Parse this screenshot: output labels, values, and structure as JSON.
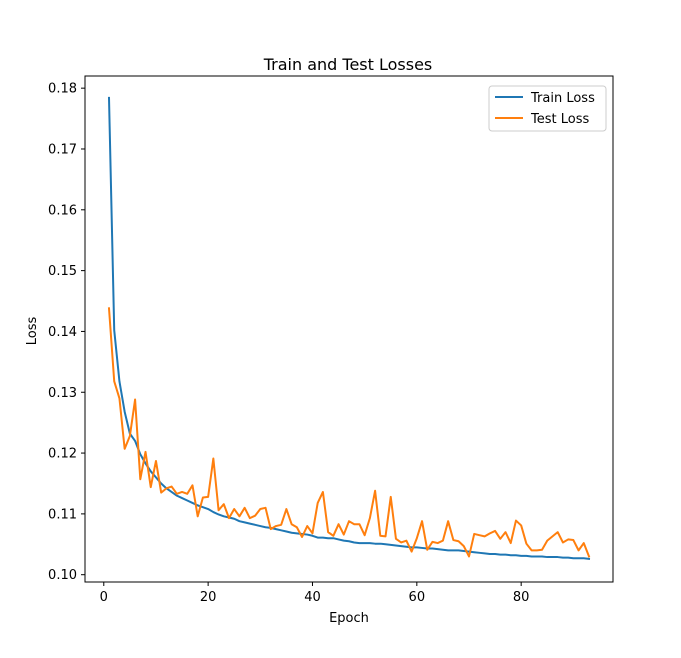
{
  "chart_data": {
    "type": "line",
    "title": "Train and Test Losses",
    "xlabel": "Epoch",
    "ylabel": "Loss",
    "xlim": [
      -3.6,
      97.6
    ],
    "ylim": [
      0.0988,
      0.182
    ],
    "xticks": [
      0,
      20,
      40,
      60,
      80
    ],
    "yticks": [
      0.1,
      0.11,
      0.12,
      0.13,
      0.14,
      0.15,
      0.16,
      0.17,
      0.18
    ],
    "ytick_labels": [
      "0.10",
      "0.11",
      "0.12",
      "0.13",
      "0.14",
      "0.15",
      "0.16",
      "0.17",
      "0.18"
    ],
    "grid": false,
    "legend_position": "upper right",
    "series": [
      {
        "name": "Train Loss",
        "color": "#1f77b4",
        "x": [
          1,
          2,
          3,
          4,
          5,
          6,
          7,
          8,
          9,
          10,
          11,
          12,
          13,
          14,
          15,
          16,
          17,
          18,
          19,
          20,
          21,
          22,
          23,
          24,
          25,
          26,
          27,
          28,
          29,
          30,
          31,
          32,
          33,
          34,
          35,
          36,
          37,
          38,
          39,
          40,
          41,
          42,
          43,
          44,
          45,
          46,
          47,
          48,
          49,
          50,
          51,
          52,
          53,
          54,
          55,
          56,
          57,
          58,
          59,
          60,
          61,
          62,
          63,
          64,
          65,
          66,
          67,
          68,
          69,
          70,
          71,
          72,
          73,
          74,
          75,
          76,
          77,
          78,
          79,
          80,
          81,
          82,
          83,
          84,
          85,
          86,
          87,
          88,
          89,
          90,
          91,
          92,
          93
        ],
        "values": [
          0.1784,
          0.1402,
          0.1318,
          0.1268,
          0.1232,
          0.122,
          0.1198,
          0.1183,
          0.117,
          0.116,
          0.115,
          0.1142,
          0.1136,
          0.113,
          0.1126,
          0.1122,
          0.1118,
          0.1114,
          0.1111,
          0.1108,
          0.1103,
          0.1099,
          0.1096,
          0.1094,
          0.1092,
          0.1088,
          0.1086,
          0.1084,
          0.1082,
          0.108,
          0.1078,
          0.1077,
          0.1075,
          0.1073,
          0.1071,
          0.1069,
          0.1068,
          0.1067,
          0.1066,
          0.1064,
          0.1061,
          0.1061,
          0.106,
          0.106,
          0.1058,
          0.1056,
          0.1055,
          0.1053,
          0.1052,
          0.1052,
          0.1052,
          0.1051,
          0.1051,
          0.105,
          0.1049,
          0.1048,
          0.1047,
          0.1046,
          0.1045,
          0.1045,
          0.1044,
          0.1043,
          0.1043,
          0.1042,
          0.1041,
          0.104,
          0.104,
          0.104,
          0.1039,
          0.1038,
          0.1037,
          0.1036,
          0.1035,
          0.1034,
          0.1034,
          0.1033,
          0.1033,
          0.1032,
          0.1032,
          0.1031,
          0.1031,
          0.103,
          0.103,
          0.103,
          0.1029,
          0.1029,
          0.1029,
          0.1028,
          0.1028,
          0.1027,
          0.1027,
          0.1027,
          0.1026
        ]
      },
      {
        "name": "Test Loss",
        "color": "#ff7f0e",
        "x": [
          1,
          2,
          3,
          4,
          5,
          6,
          7,
          8,
          9,
          10,
          11,
          12,
          13,
          14,
          15,
          16,
          17,
          18,
          19,
          20,
          21,
          22,
          23,
          24,
          25,
          26,
          27,
          28,
          29,
          30,
          31,
          32,
          33,
          34,
          35,
          36,
          37,
          38,
          39,
          40,
          41,
          42,
          43,
          44,
          45,
          46,
          47,
          48,
          49,
          50,
          51,
          52,
          53,
          54,
          55,
          56,
          57,
          58,
          59,
          60,
          61,
          62,
          63,
          64,
          65,
          66,
          67,
          68,
          69,
          70,
          71,
          72,
          73,
          74,
          75,
          76,
          77,
          78,
          79,
          80,
          81,
          82,
          83,
          84,
          85,
          86,
          87,
          88,
          89,
          90,
          91,
          92,
          93
        ],
        "values": [
          0.1438,
          0.1318,
          0.129,
          0.1207,
          0.1228,
          0.1288,
          0.1157,
          0.1202,
          0.1144,
          0.1187,
          0.1135,
          0.1142,
          0.1145,
          0.1133,
          0.1136,
          0.1133,
          0.1147,
          0.1096,
          0.1127,
          0.1128,
          0.1191,
          0.1106,
          0.1116,
          0.1093,
          0.1108,
          0.1096,
          0.111,
          0.1093,
          0.1097,
          0.1108,
          0.111,
          0.1075,
          0.108,
          0.1082,
          0.1108,
          0.1083,
          0.1078,
          0.1062,
          0.108,
          0.1068,
          0.1118,
          0.1136,
          0.107,
          0.1064,
          0.1083,
          0.1066,
          0.1088,
          0.1083,
          0.1083,
          0.1065,
          0.1093,
          0.1138,
          0.1064,
          0.1063,
          0.1128,
          0.1059,
          0.1053,
          0.1056,
          0.1038,
          0.106,
          0.1088,
          0.1041,
          0.1054,
          0.1052,
          0.1056,
          0.1088,
          0.1057,
          0.1055,
          0.1047,
          0.103,
          0.1067,
          0.1065,
          0.1063,
          0.1068,
          0.1072,
          0.1059,
          0.107,
          0.1052,
          0.1089,
          0.1081,
          0.1051,
          0.104,
          0.104,
          0.1041,
          0.1056,
          0.1063,
          0.107,
          0.1053,
          0.1058,
          0.1057,
          0.104,
          0.1052,
          0.103
        ]
      }
    ]
  }
}
